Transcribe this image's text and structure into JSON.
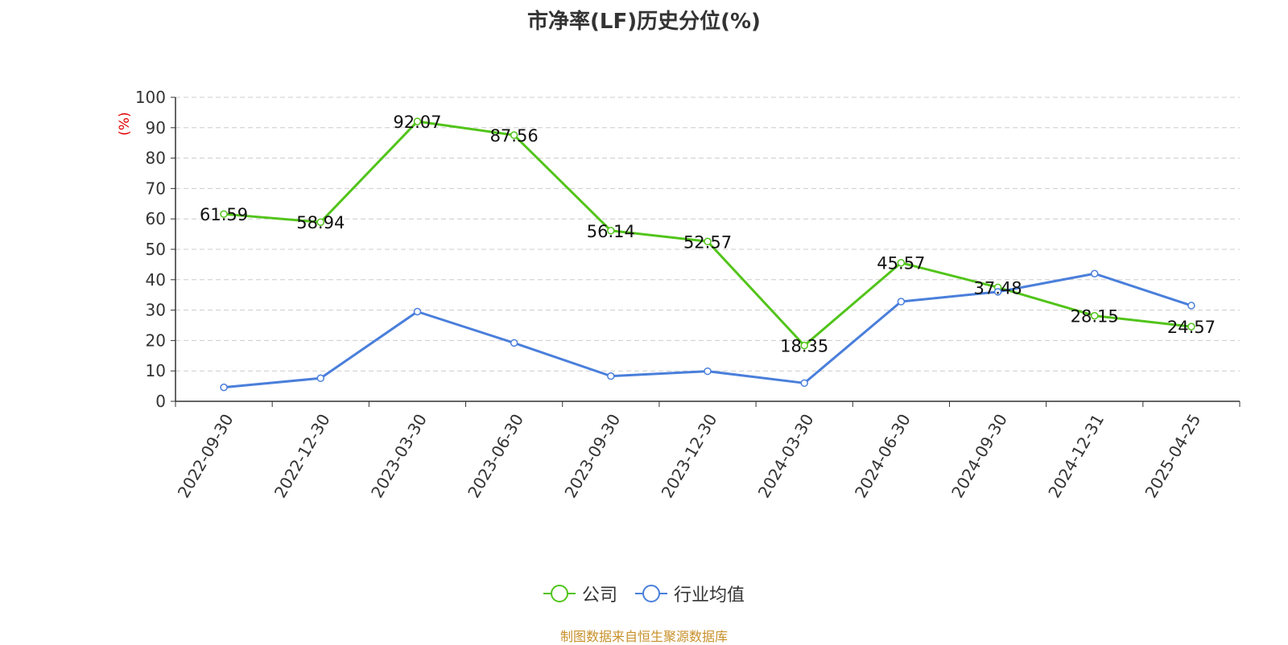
{
  "title": "市净率(LF)历史分位(%)",
  "source": "制图数据来自恒生聚源数据库",
  "colors": {
    "company": "#52c41a",
    "industry": "#4a7fdb",
    "unit": "#e00000",
    "grid": "#cccccc",
    "axis": "#333333"
  },
  "chart_data": {
    "type": "line",
    "title": "市净率(LF)历史分位(%)",
    "ylabel": "(%)",
    "ylim": [
      0,
      100
    ],
    "yticks": [
      0,
      10,
      20,
      30,
      40,
      50,
      60,
      70,
      80,
      90,
      100
    ],
    "grid": true,
    "legend_position": "bottom",
    "categories": [
      "2022-09-30",
      "2022-12-30",
      "2023-03-30",
      "2023-06-30",
      "2023-09-30",
      "2023-12-30",
      "2024-03-30",
      "2024-06-30",
      "2024-09-30",
      "2024-12-31",
      "2025-04-25"
    ],
    "series": [
      {
        "name": "公司",
        "values": [
          61.59,
          58.94,
          92.07,
          87.56,
          56.14,
          52.57,
          18.35,
          45.57,
          37.48,
          28.15,
          24.57
        ],
        "labels": [
          "61.59",
          "58.94",
          "92.07",
          "87.56",
          "56.14",
          "52.57",
          "18.35",
          "45.57",
          "37.48",
          "28.15",
          "24.57"
        ]
      },
      {
        "name": "行业均值",
        "values": [
          4.6,
          7.6,
          29.5,
          19.2,
          8.3,
          9.9,
          6.0,
          32.8,
          36.0,
          42.0,
          31.5
        ]
      }
    ]
  }
}
